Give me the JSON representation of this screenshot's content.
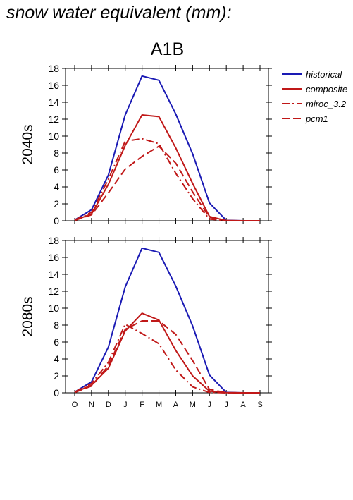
{
  "page": {
    "title": "snow water equivalent (mm):"
  },
  "scenario": "A1B",
  "colors": {
    "historical": "#1a1ab4",
    "red": "#c01818"
  },
  "chart_data": {
    "type": "line",
    "categories": [
      "O",
      "N",
      "D",
      "J",
      "F",
      "M",
      "A",
      "M",
      "J",
      "J",
      "A",
      "S"
    ],
    "ylim": [
      0,
      18
    ],
    "yticks": [
      0,
      2,
      4,
      6,
      8,
      10,
      12,
      14,
      16,
      18
    ],
    "legend_position": "right",
    "grid": false,
    "legend": [
      {
        "name": "historical",
        "color": "#1a1ab4",
        "dash": "solid"
      },
      {
        "name": "composite",
        "color": "#c01818",
        "dash": "solid"
      },
      {
        "name": "miroc_3.2",
        "color": "#c01818",
        "dash": "dashdot"
      },
      {
        "name": "pcm1",
        "color": "#c01818",
        "dash": "dashed"
      }
    ],
    "panels": [
      {
        "label": "2040s",
        "series": [
          {
            "name": "historical",
            "values": [
              0.1,
              1.3,
              5.4,
              12.5,
              17.1,
              16.6,
              12.6,
              7.9,
              2.1,
              0.05,
              0,
              0
            ]
          },
          {
            "name": "composite",
            "values": [
              0.05,
              0.8,
              4.3,
              8.9,
              12.5,
              12.3,
              8.6,
              4.4,
              0.5,
              0.02,
              0,
              0
            ]
          },
          {
            "name": "miroc_3.2",
            "values": [
              0.1,
              1.0,
              4.9,
              9.4,
              9.7,
              9.1,
              5.6,
              2.6,
              0.2,
              0.01,
              0,
              0
            ]
          },
          {
            "name": "pcm1",
            "values": [
              0.05,
              0.7,
              3.3,
              6.1,
              7.6,
              8.8,
              6.8,
              3.4,
              0.4,
              0.02,
              0,
              0
            ]
          }
        ]
      },
      {
        "label": "2080s",
        "series": [
          {
            "name": "historical",
            "values": [
              0.1,
              1.3,
              5.4,
              12.5,
              17.1,
              16.6,
              12.6,
              7.9,
              2.1,
              0.05,
              0,
              0
            ]
          },
          {
            "name": "composite",
            "values": [
              0.05,
              0.9,
              2.9,
              7.3,
              9.4,
              8.6,
              5.0,
              2.0,
              0.2,
              0.02,
              0,
              0
            ]
          },
          {
            "name": "miroc_3.2",
            "values": [
              0.1,
              1.1,
              3.6,
              8.1,
              7.0,
              5.8,
              2.7,
              0.7,
              0.05,
              0,
              0,
              0
            ]
          },
          {
            "name": "pcm1",
            "values": [
              0.05,
              0.8,
              3.2,
              7.5,
              8.5,
              8.5,
              6.9,
              3.8,
              0.4,
              0.02,
              0,
              0
            ]
          }
        ]
      }
    ]
  }
}
